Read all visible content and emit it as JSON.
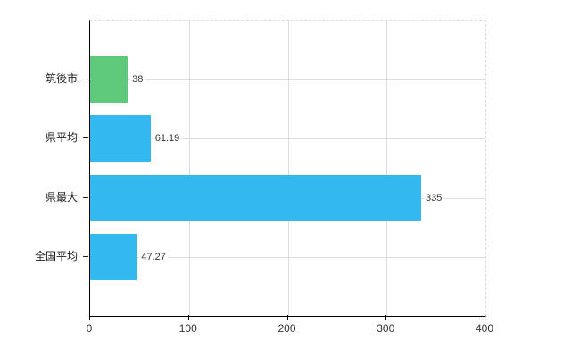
{
  "chart_data": {
    "type": "bar",
    "orientation": "horizontal",
    "title": "",
    "xlabel": "",
    "ylabel": "",
    "categories": [
      "筑後市",
      "県平均",
      "県最大",
      "全国平均"
    ],
    "values": [
      38,
      61.19,
      335,
      47.27
    ],
    "value_labels": [
      "38",
      "61.19",
      "335",
      "47.27"
    ],
    "bar_colors": [
      "#5ec97b",
      "#33b9ee",
      "#33b9ee",
      "#33b9ee"
    ],
    "xlim": [
      0,
      400
    ],
    "x_ticks": [
      "0",
      "100",
      "200",
      "300",
      "400"
    ],
    "grid": true,
    "legend": false,
    "colors": {
      "axis": "#000000",
      "gridline": "#dcdcdc",
      "plot_border_dashed": "#ddd6dd",
      "label_text": "#333333",
      "background": "#ffffff"
    }
  }
}
